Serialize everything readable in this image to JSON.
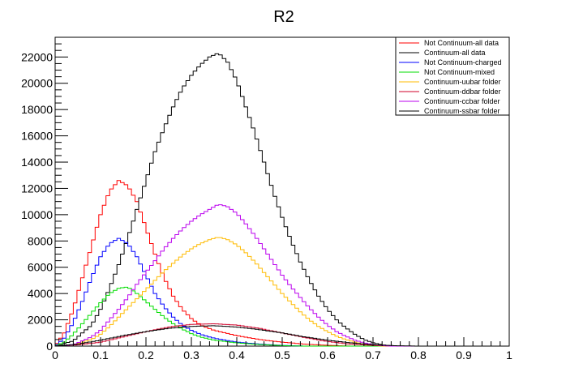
{
  "chart_data": {
    "type": "line",
    "title": "R2",
    "xlabel": "",
    "ylabel": "",
    "xlim": [
      0,
      1
    ],
    "ylim": [
      0,
      23500
    ],
    "x_ticks": [
      "0",
      "0.1",
      "0.2",
      "0.3",
      "0.4",
      "0.5",
      "0.6",
      "0.7",
      "0.8",
      "0.9",
      "1"
    ],
    "y_ticks": [
      "0",
      "2000",
      "4000",
      "6000",
      "8000",
      "10000",
      "12000",
      "14000",
      "16000",
      "18000",
      "20000",
      "22000"
    ],
    "grid": false,
    "legend_position": "top-right",
    "style": "step-histogram",
    "series": [
      {
        "name": "Not Continuum-all data",
        "color": "#ff0000",
        "points": [
          [
            0,
            0
          ],
          [
            0.02,
            1000
          ],
          [
            0.04,
            2800
          ],
          [
            0.06,
            5200
          ],
          [
            0.08,
            7600
          ],
          [
            0.1,
            10000
          ],
          [
            0.12,
            11800
          ],
          [
            0.14,
            12600
          ],
          [
            0.16,
            12200
          ],
          [
            0.18,
            11000
          ],
          [
            0.2,
            9000
          ],
          [
            0.22,
            7000
          ],
          [
            0.24,
            5200
          ],
          [
            0.26,
            3800
          ],
          [
            0.28,
            2800
          ],
          [
            0.3,
            2100
          ],
          [
            0.32,
            1600
          ],
          [
            0.35,
            1200
          ],
          [
            0.4,
            800
          ],
          [
            0.45,
            500
          ],
          [
            0.5,
            300
          ],
          [
            0.55,
            150
          ],
          [
            0.6,
            60
          ],
          [
            0.65,
            0
          ]
        ]
      },
      {
        "name": "Continuum-all data",
        "color": "#000000",
        "points": [
          [
            0,
            0
          ],
          [
            0.04,
            400
          ],
          [
            0.08,
            1600
          ],
          [
            0.1,
            2800
          ],
          [
            0.12,
            4400
          ],
          [
            0.14,
            6200
          ],
          [
            0.16,
            8200
          ],
          [
            0.18,
            10400
          ],
          [
            0.2,
            12600
          ],
          [
            0.22,
            14800
          ],
          [
            0.24,
            16600
          ],
          [
            0.26,
            18200
          ],
          [
            0.28,
            19600
          ],
          [
            0.3,
            20600
          ],
          [
            0.32,
            21400
          ],
          [
            0.34,
            22000
          ],
          [
            0.36,
            22300
          ],
          [
            0.38,
            21600
          ],
          [
            0.4,
            20200
          ],
          [
            0.42,
            18200
          ],
          [
            0.44,
            16200
          ],
          [
            0.46,
            14000
          ],
          [
            0.48,
            11800
          ],
          [
            0.5,
            9800
          ],
          [
            0.52,
            8000
          ],
          [
            0.54,
            6400
          ],
          [
            0.56,
            5000
          ],
          [
            0.58,
            3800
          ],
          [
            0.6,
            2800
          ],
          [
            0.62,
            2000
          ],
          [
            0.64,
            1400
          ],
          [
            0.66,
            900
          ],
          [
            0.68,
            500
          ],
          [
            0.7,
            250
          ],
          [
            0.72,
            100
          ],
          [
            0.74,
            0
          ]
        ]
      },
      {
        "name": "Not Continuum-charged",
        "color": "#0000ff",
        "points": [
          [
            0,
            0
          ],
          [
            0.02,
            600
          ],
          [
            0.04,
            1800
          ],
          [
            0.06,
            3400
          ],
          [
            0.08,
            5200
          ],
          [
            0.1,
            6800
          ],
          [
            0.12,
            7800
          ],
          [
            0.14,
            8200
          ],
          [
            0.16,
            7800
          ],
          [
            0.18,
            6800
          ],
          [
            0.2,
            5400
          ],
          [
            0.22,
            4000
          ],
          [
            0.24,
            3000
          ],
          [
            0.26,
            2200
          ],
          [
            0.28,
            1600
          ],
          [
            0.3,
            1200
          ],
          [
            0.32,
            900
          ],
          [
            0.35,
            600
          ],
          [
            0.4,
            300
          ],
          [
            0.45,
            150
          ],
          [
            0.5,
            50
          ],
          [
            0.55,
            0
          ]
        ]
      },
      {
        "name": "Not Continuum-mixed",
        "color": "#00dd00",
        "points": [
          [
            0,
            0
          ],
          [
            0.02,
            300
          ],
          [
            0.04,
            900
          ],
          [
            0.06,
            1700
          ],
          [
            0.08,
            2500
          ],
          [
            0.1,
            3300
          ],
          [
            0.12,
            4000
          ],
          [
            0.14,
            4400
          ],
          [
            0.16,
            4500
          ],
          [
            0.18,
            4000
          ],
          [
            0.2,
            3400
          ],
          [
            0.22,
            2800
          ],
          [
            0.24,
            2200
          ],
          [
            0.26,
            1700
          ],
          [
            0.28,
            1300
          ],
          [
            0.3,
            950
          ],
          [
            0.32,
            700
          ],
          [
            0.35,
            450
          ],
          [
            0.4,
            250
          ],
          [
            0.45,
            120
          ],
          [
            0.5,
            40
          ],
          [
            0.55,
            0
          ]
        ]
      },
      {
        "name": "Continuum-uubar folder",
        "color": "#ffbb00",
        "points": [
          [
            0,
            0
          ],
          [
            0.04,
            100
          ],
          [
            0.08,
            500
          ],
          [
            0.1,
            900
          ],
          [
            0.12,
            1500
          ],
          [
            0.14,
            2200
          ],
          [
            0.16,
            2900
          ],
          [
            0.18,
            3600
          ],
          [
            0.2,
            4300
          ],
          [
            0.22,
            5000
          ],
          [
            0.24,
            5700
          ],
          [
            0.26,
            6300
          ],
          [
            0.28,
            6900
          ],
          [
            0.3,
            7400
          ],
          [
            0.32,
            7800
          ],
          [
            0.34,
            8100
          ],
          [
            0.36,
            8300
          ],
          [
            0.38,
            8100
          ],
          [
            0.4,
            7700
          ],
          [
            0.42,
            7100
          ],
          [
            0.44,
            6400
          ],
          [
            0.46,
            5600
          ],
          [
            0.48,
            4800
          ],
          [
            0.5,
            4000
          ],
          [
            0.52,
            3300
          ],
          [
            0.54,
            2600
          ],
          [
            0.56,
            2000
          ],
          [
            0.58,
            1500
          ],
          [
            0.6,
            1100
          ],
          [
            0.62,
            750
          ],
          [
            0.64,
            500
          ],
          [
            0.66,
            300
          ],
          [
            0.68,
            150
          ],
          [
            0.7,
            60
          ],
          [
            0.72,
            0
          ]
        ]
      },
      {
        "name": "Continuum-ddbar folder",
        "color": "#d0002a",
        "points": [
          [
            0,
            0
          ],
          [
            0.05,
            100
          ],
          [
            0.1,
            300
          ],
          [
            0.15,
            700
          ],
          [
            0.2,
            1100
          ],
          [
            0.25,
            1450
          ],
          [
            0.3,
            1650
          ],
          [
            0.35,
            1700
          ],
          [
            0.4,
            1600
          ],
          [
            0.45,
            1350
          ],
          [
            0.5,
            1000
          ],
          [
            0.55,
            650
          ],
          [
            0.6,
            350
          ],
          [
            0.65,
            150
          ],
          [
            0.7,
            50
          ],
          [
            0.75,
            0
          ]
        ]
      },
      {
        "name": "Continuum-ccbar folder",
        "color": "#bb00ee",
        "points": [
          [
            0,
            0
          ],
          [
            0.04,
            100
          ],
          [
            0.08,
            700
          ],
          [
            0.1,
            1200
          ],
          [
            0.12,
            2000
          ],
          [
            0.14,
            2800
          ],
          [
            0.16,
            3700
          ],
          [
            0.18,
            4700
          ],
          [
            0.2,
            5600
          ],
          [
            0.22,
            6500
          ],
          [
            0.24,
            7400
          ],
          [
            0.26,
            8200
          ],
          [
            0.28,
            8900
          ],
          [
            0.3,
            9500
          ],
          [
            0.32,
            10000
          ],
          [
            0.34,
            10400
          ],
          [
            0.36,
            10800
          ],
          [
            0.38,
            10600
          ],
          [
            0.4,
            10100
          ],
          [
            0.42,
            9300
          ],
          [
            0.44,
            8400
          ],
          [
            0.46,
            7400
          ],
          [
            0.48,
            6400
          ],
          [
            0.5,
            5400
          ],
          [
            0.52,
            4500
          ],
          [
            0.54,
            3700
          ],
          [
            0.56,
            2900
          ],
          [
            0.58,
            2200
          ],
          [
            0.6,
            1600
          ],
          [
            0.62,
            1100
          ],
          [
            0.64,
            750
          ],
          [
            0.66,
            450
          ],
          [
            0.68,
            250
          ],
          [
            0.7,
            120
          ],
          [
            0.72,
            40
          ],
          [
            0.74,
            0
          ]
        ]
      },
      {
        "name": "Continuum-ssbar folder",
        "color": "#000000",
        "points": [
          [
            0,
            0
          ],
          [
            0.05,
            150
          ],
          [
            0.1,
            450
          ],
          [
            0.15,
            800
          ],
          [
            0.2,
            1100
          ],
          [
            0.25,
            1350
          ],
          [
            0.3,
            1500
          ],
          [
            0.35,
            1550
          ],
          [
            0.4,
            1450
          ],
          [
            0.45,
            1250
          ],
          [
            0.5,
            1000
          ],
          [
            0.55,
            700
          ],
          [
            0.6,
            450
          ],
          [
            0.65,
            250
          ],
          [
            0.7,
            100
          ],
          [
            0.75,
            30
          ],
          [
            0.8,
            0
          ]
        ]
      }
    ]
  }
}
